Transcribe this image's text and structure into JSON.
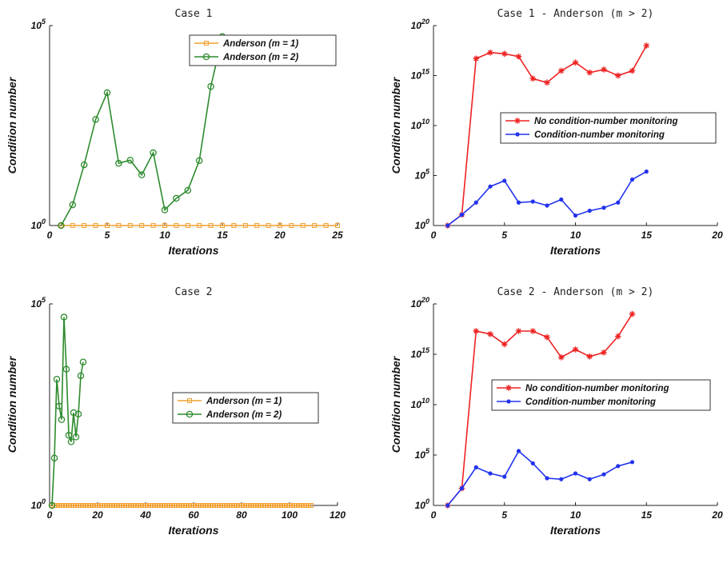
{
  "chart_data": [
    {
      "type": "line",
      "title": "Case 1",
      "xlabel": "Iterations",
      "ylabel": "Condition number",
      "xlim": [
        0,
        25
      ],
      "xticks": [
        0,
        5,
        10,
        15,
        20,
        25
      ],
      "ylim": [
        1,
        100000
      ],
      "yscale": "log",
      "yticks": [
        {
          "base": "10",
          "exp": "0",
          "value": 1
        },
        {
          "base": "10",
          "exp": "5",
          "value": 100000
        }
      ],
      "legend_position": "top-right",
      "series": [
        {
          "name": "Anderson (m = 1)",
          "color": "#f0a030",
          "marker": "square",
          "x": [
            1,
            2,
            3,
            4,
            5,
            6,
            7,
            8,
            9,
            10,
            11,
            12,
            13,
            14,
            15,
            16,
            17,
            18,
            19,
            20,
            21,
            22,
            23,
            24,
            25
          ],
          "y": [
            1,
            1,
            1,
            1,
            1,
            1,
            1,
            1,
            1,
            1,
            1,
            1,
            1,
            1,
            1,
            1,
            1,
            1,
            1,
            1,
            1,
            1,
            1,
            1,
            1
          ]
        },
        {
          "name": "Anderson (m = 2)",
          "color": "#2e8b2e",
          "marker": "circle",
          "x": [
            1,
            2,
            3,
            4,
            5,
            6,
            7,
            8,
            9,
            10,
            11,
            12,
            13,
            14,
            15
          ],
          "y": [
            1,
            3.3,
            33,
            450,
            2100,
            36,
            43,
            18.5,
            66,
            2.45,
            4.8,
            7.6,
            42,
            3000,
            53000
          ]
        }
      ]
    },
    {
      "type": "line",
      "title": "Case 1 - Anderson (m > 2)",
      "xlabel": "Iterations",
      "ylabel": "Condition number",
      "xlim": [
        0,
        20
      ],
      "xticks": [
        0,
        5,
        10,
        15,
        20
      ],
      "ylim": [
        1,
        1e+20
      ],
      "yscale": "log",
      "yticks": [
        {
          "base": "10",
          "exp": "0",
          "value": 1
        },
        {
          "base": "10",
          "exp": "5",
          "value": 100000
        },
        {
          "base": "10",
          "exp": "10",
          "value": 10000000000.0
        },
        {
          "base": "10",
          "exp": "15",
          "value": 1000000000000000.0
        },
        {
          "base": "10",
          "exp": "20",
          "value": 1e+20
        }
      ],
      "legend_position": "middle-right",
      "series": [
        {
          "name": "No condition-number monitoring",
          "color": "#ee2222",
          "marker": "asterisk",
          "x": [
            1,
            2,
            3,
            4,
            5,
            6,
            7,
            8,
            9,
            10,
            11,
            12,
            13,
            14,
            15
          ],
          "y": [
            1,
            12,
            5e+16,
            2e+17,
            1.5e+17,
            8e+16,
            500000000000000.0,
            200000000000000.0,
            3000000000000000.0,
            2e+16,
            2000000000000000.0,
            4000000000000000.0,
            1000000000000000.0,
            3000000000000000.0,
            1e+18
          ]
        },
        {
          "name": "Condition-number monitoring",
          "color": "#2233ee",
          "marker": "dot",
          "x": [
            1,
            2,
            3,
            4,
            5,
            6,
            7,
            8,
            9,
            10,
            11,
            12,
            13,
            14,
            15
          ],
          "y": [
            1,
            12,
            200,
            8000,
            30000,
            200,
            250,
            100,
            400,
            10,
            30,
            60,
            200,
            40000,
            250000
          ]
        }
      ]
    },
    {
      "type": "line",
      "title": "Case 2",
      "xlabel": "Iterations",
      "ylabel": "Condition number",
      "xlim": [
        0,
        120
      ],
      "xticks": [
        0,
        20,
        40,
        60,
        80,
        100,
        120
      ],
      "ylim": [
        1,
        100000
      ],
      "yscale": "log",
      "yticks": [
        {
          "base": "10",
          "exp": "0",
          "value": 1
        },
        {
          "base": "10",
          "exp": "5",
          "value": 100000
        }
      ],
      "legend_position": "middle-right",
      "series": [
        {
          "name": "Anderson (m = 1)",
          "color": "#f0a030",
          "marker": "square",
          "x_range": [
            1,
            109
          ],
          "y_constant": 1
        },
        {
          "name": "Anderson (m = 2)",
          "color": "#2e8b2e",
          "marker": "circle",
          "x": [
            1,
            2,
            3,
            4,
            5,
            6,
            7,
            8,
            9,
            10,
            11,
            12,
            13,
            14
          ],
          "y": [
            1,
            15,
            1350,
            290,
            135,
            47000,
            2400,
            55,
            38,
            200,
            50,
            185,
            1650,
            3600
          ]
        }
      ]
    },
    {
      "type": "line",
      "title": "Case 2 - Anderson (m > 2)",
      "xlabel": "Iterations",
      "ylabel": "Condition number",
      "xlim": [
        0,
        20
      ],
      "xticks": [
        0,
        5,
        10,
        15,
        20
      ],
      "ylim": [
        1,
        1e+20
      ],
      "yscale": "log",
      "yticks": [
        {
          "base": "10",
          "exp": "0",
          "value": 1
        },
        {
          "base": "10",
          "exp": "5",
          "value": 100000
        },
        {
          "base": "10",
          "exp": "10",
          "value": 10000000000.0
        },
        {
          "base": "10",
          "exp": "15",
          "value": 1000000000000000.0
        },
        {
          "base": "10",
          "exp": "20",
          "value": 1e+20
        }
      ],
      "legend_position": "middle-right",
      "series": [
        {
          "name": "No condition-number monitoring",
          "color": "#ee2222",
          "marker": "asterisk",
          "x": [
            1,
            2,
            3,
            4,
            5,
            6,
            7,
            8,
            9,
            10,
            11,
            12,
            13,
            14
          ],
          "y": [
            1,
            50,
            2e+17,
            1e+17,
            1e+16,
            2e+17,
            2e+17,
            5e+16,
            500000000000000.0,
            3000000000000000.0,
            600000000000000.0,
            1500000000000000.0,
            6e+16,
            1e+19
          ]
        },
        {
          "name": "Condition-number monitoring",
          "color": "#2233ee",
          "marker": "dot",
          "x": [
            1,
            2,
            3,
            4,
            5,
            6,
            7,
            8,
            9,
            10,
            11,
            12,
            13,
            14
          ],
          "y": [
            1,
            50,
            6000,
            1500,
            700,
            250000,
            15000,
            500,
            400,
            1500,
            400,
            1200,
            8000,
            20000
          ]
        }
      ]
    }
  ]
}
